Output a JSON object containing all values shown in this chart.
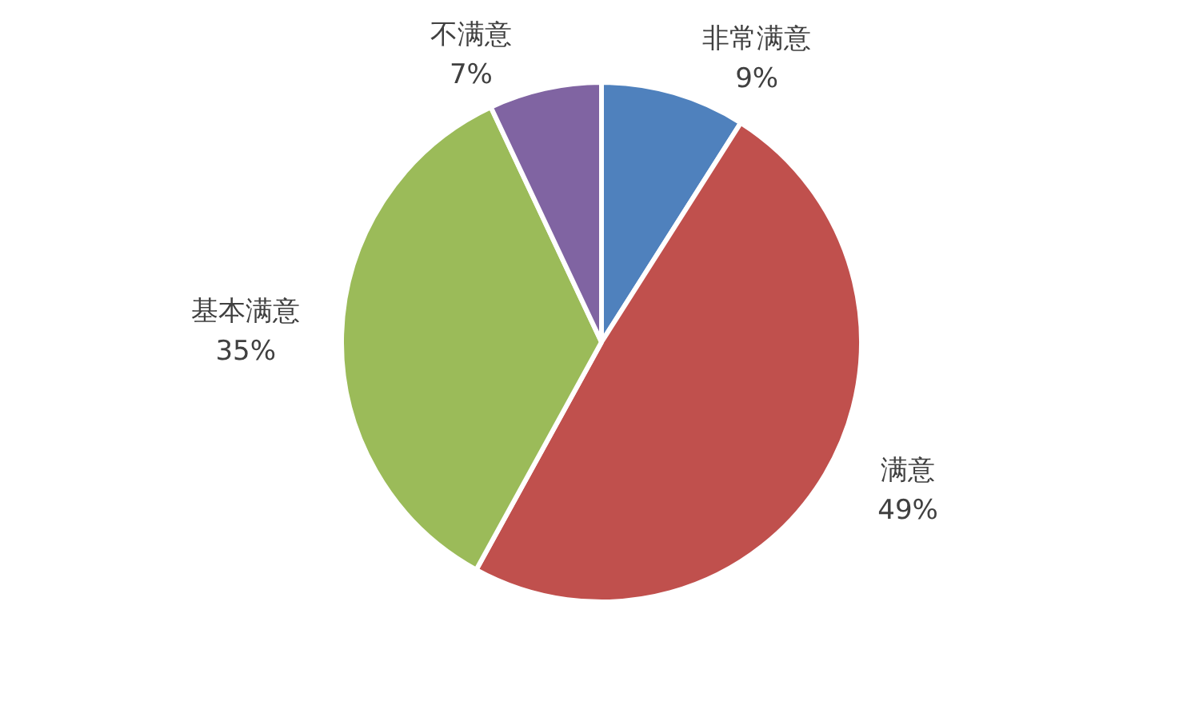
{
  "chart_data": {
    "type": "pie",
    "categories": [
      "非常满意",
      "满意",
      "基本满意",
      "不满意"
    ],
    "values": [
      9,
      49,
      35,
      7
    ],
    "colors": [
      "#4f81bd",
      "#c0504d",
      "#9bbb59",
      "#8064a2"
    ],
    "value_labels": [
      "9%",
      "49%",
      "35%",
      "7%"
    ]
  }
}
